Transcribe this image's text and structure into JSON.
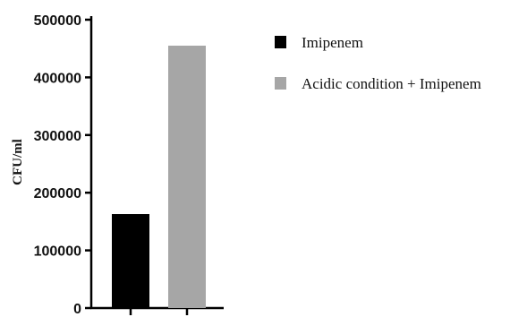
{
  "chart_data": {
    "type": "bar",
    "title": "",
    "xlabel": "",
    "ylabel": "CFU/ml",
    "ylim": [
      0,
      500000
    ],
    "yticks": [
      0,
      100000,
      200000,
      300000,
      400000,
      500000
    ],
    "ytick_labels": [
      "0",
      "100000",
      "200000",
      "300000",
      "400000",
      "500000"
    ],
    "grid": false,
    "legend_position": "top-right",
    "series": [
      {
        "name": "Imipenem",
        "value": 163000,
        "color": "#000000"
      },
      {
        "name": "Acidic condition + Imipenem",
        "value": 455000,
        "color": "#a6a6a6"
      }
    ]
  }
}
